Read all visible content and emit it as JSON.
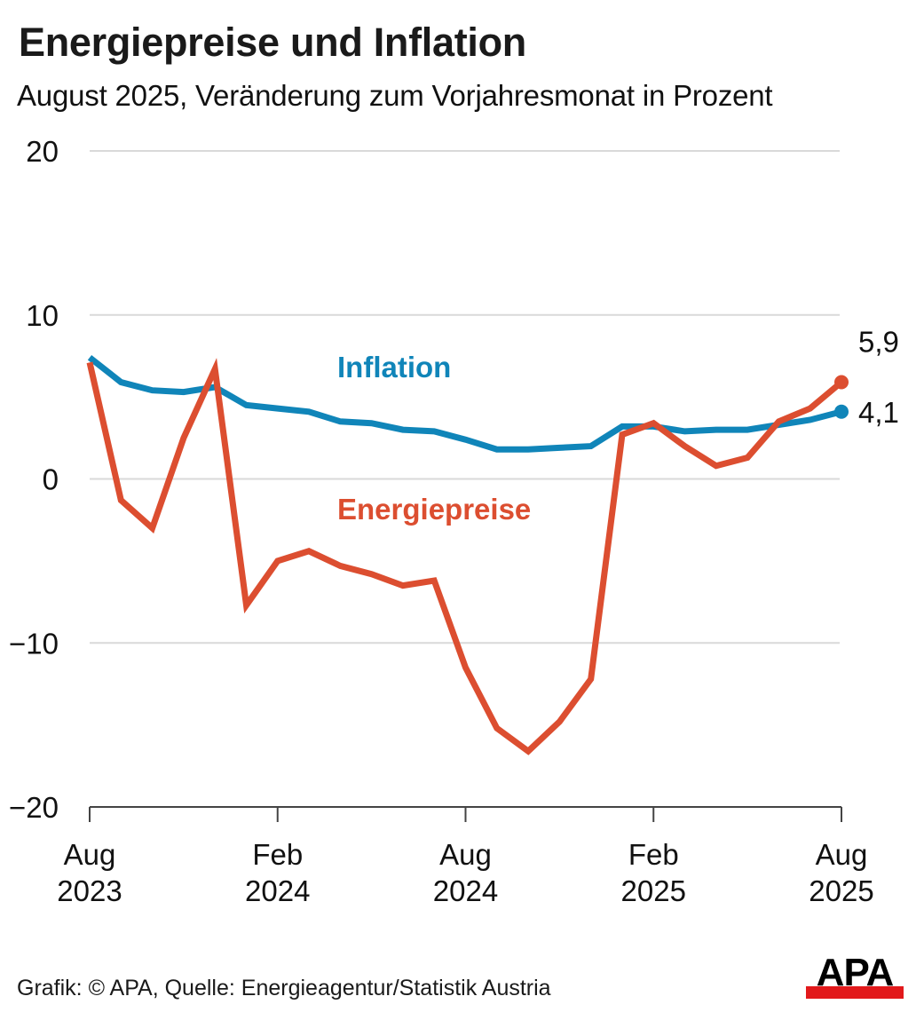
{
  "header": {
    "title": "Energiepreise und Inflation",
    "subtitle": "August 2025, Veränderung zum Vorjahresmonat in Prozent"
  },
  "footer": {
    "source": "Grafik: © APA, Quelle: Energieagentur/Statistik Austria",
    "logo_text": "APA"
  },
  "colors": {
    "inflation": "#1085b9",
    "energy": "#dc4e30",
    "grid": "#d9d9d9",
    "axis": "#444444",
    "logo_red": "#e2191b"
  },
  "chart_data": {
    "type": "line",
    "title": "Energiepreise und Inflation",
    "subtitle": "August 2025, Veränderung zum Vorjahresmonat in Prozent",
    "xlabel": "",
    "ylabel": "",
    "ylim": [
      -20,
      20
    ],
    "yticks": [
      20,
      10,
      0,
      -10,
      -20
    ],
    "ytick_labels": [
      "20",
      "10",
      "0",
      "−10",
      "−20"
    ],
    "grid": true,
    "x": [
      "2023-08",
      "2023-09",
      "2023-10",
      "2023-11",
      "2023-12",
      "2024-01",
      "2024-02",
      "2024-03",
      "2024-04",
      "2024-05",
      "2024-06",
      "2024-07",
      "2024-08",
      "2024-09",
      "2024-10",
      "2024-11",
      "2024-12",
      "2025-01",
      "2025-02",
      "2025-03",
      "2025-04",
      "2025-05",
      "2025-06",
      "2025-07",
      "2025-08"
    ],
    "xticks": [
      {
        "index": 0,
        "line1": "Aug",
        "line2": "2023"
      },
      {
        "index": 6,
        "line1": "Feb",
        "line2": "2024"
      },
      {
        "index": 12,
        "line1": "Aug",
        "line2": "2024"
      },
      {
        "index": 18,
        "line1": "Feb",
        "line2": "2025"
      },
      {
        "index": 24,
        "line1": "Aug",
        "line2": "2025"
      }
    ],
    "series": [
      {
        "name": "Inflation",
        "color": "#1085b9",
        "values": [
          7.4,
          5.9,
          5.4,
          5.3,
          5.6,
          4.5,
          4.3,
          4.1,
          3.5,
          3.4,
          3.0,
          2.9,
          2.4,
          1.8,
          1.8,
          1.9,
          2.0,
          3.2,
          3.2,
          2.9,
          3.0,
          3.0,
          3.3,
          3.6,
          4.1
        ],
        "end_label": "4,1"
      },
      {
        "name": "Energiepreise",
        "color": "#dc4e30",
        "values": [
          7.1,
          -1.3,
          -3.0,
          2.5,
          6.7,
          -7.7,
          -5.0,
          -4.4,
          -5.3,
          -5.8,
          -6.5,
          -6.2,
          -11.5,
          -15.2,
          -16.6,
          -14.8,
          -12.2,
          2.7,
          3.4,
          2.0,
          0.8,
          1.3,
          3.5,
          4.3,
          5.9
        ],
        "end_label": "5,9"
      }
    ],
    "legend": "inline labels (Inflation above lines center, Energiepreise below zero line center)"
  }
}
